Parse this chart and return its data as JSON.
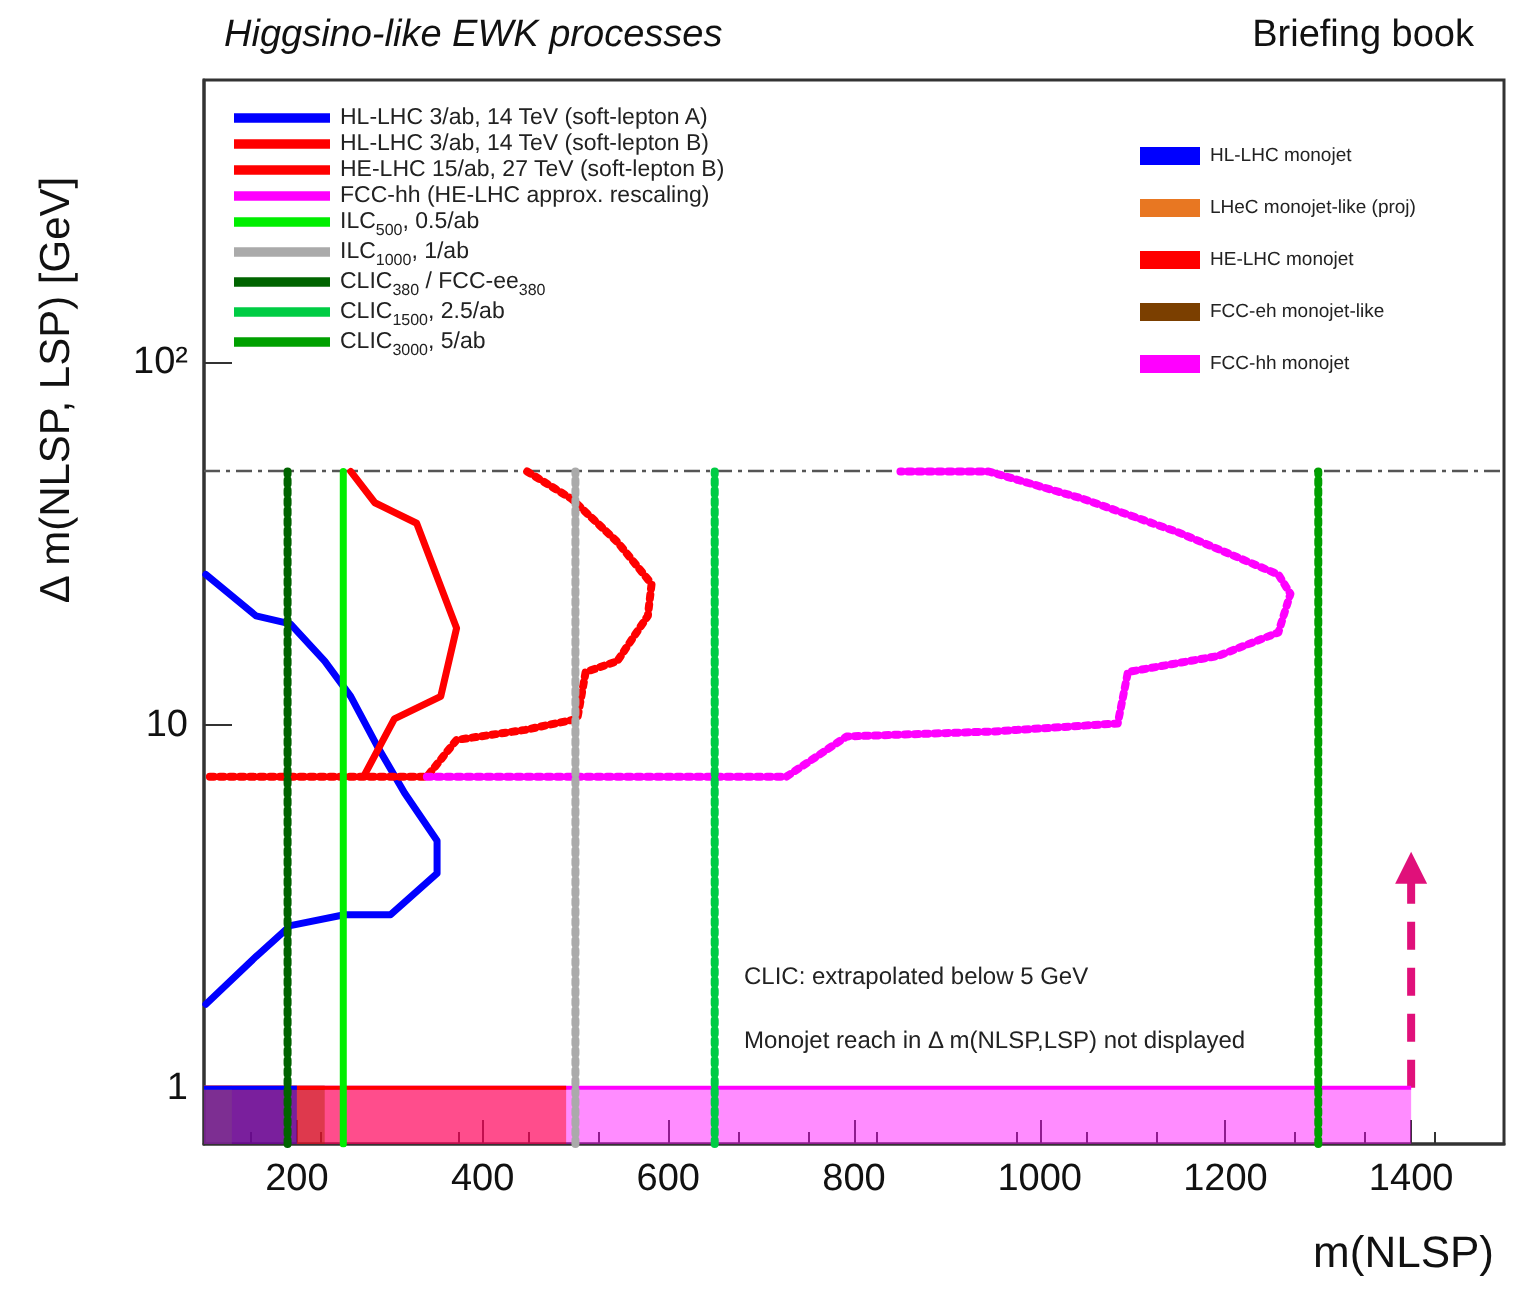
{
  "chart_data": {
    "type": "line",
    "title": "Higgsino-like EWK processes",
    "subtitle": "Briefing book",
    "xlabel": "m(NLSP)",
    "ylabel": "Δ m(NLSP, LSP) [GeV]",
    "xlim": [
      100,
      1500
    ],
    "xticks": [
      200,
      400,
      600,
      800,
      1000,
      1200,
      1400
    ],
    "ylim": [
      0.7,
      600
    ],
    "yticks": [
      1,
      10,
      {
        "value": 100,
        "label": "10²"
      }
    ],
    "log": "y",
    "grid": false,
    "legend": "top",
    "marker": "none",
    "ref_lines": [
      {
        "axis": "y",
        "value": 50,
        "color": "#555555",
        "line_style": "dashed"
      }
    ],
    "annotations": [
      "CLIC: extrapolated below 5 GeV",
      "Monojet reach in Δ m(NLSP,LSP) not displayed"
    ],
    "series": [
      {
        "name": "HL-LHC 3/ab, 14 TeV (soft-lepton A)",
        "color": "#0000ff",
        "line_style": "solid",
        "x": [
          102,
          156,
          193,
          230,
          258,
          286,
          316,
          351,
          351,
          301,
          251,
          193,
          156,
          102
        ],
        "values": [
          26,
          20,
          19,
          15,
          12,
          8.8,
          6.5,
          4.8,
          3.9,
          3.0,
          3.0,
          2.8,
          2.3,
          1.7
        ]
      },
      {
        "name": "HL-LHC 3/ab, 14 TeV (soft-lepton B)",
        "color": "#ff0000",
        "line_style": "solid",
        "x": [
          258,
          284,
          329,
          372,
          355,
          305,
          273
        ],
        "values": [
          50,
          41,
          36,
          18.5,
          12,
          10.4,
          7.3
        ]
      },
      {
        "name": "HE-LHC 15/ab, 27 TeV (soft-lepton B)",
        "color": "#ff0000",
        "line_style": "dotted",
        "x": [
          448,
          496,
          545,
          582,
          578,
          545,
          511,
          502,
          446,
          372,
          340,
          100
        ],
        "values": [
          50,
          42,
          32,
          24.5,
          20,
          15,
          14,
          10.4,
          9.7,
          9.1,
          7.2,
          7.2
        ]
      },
      {
        "name": "FCC-hh (HE-LHC approx. rescaling)",
        "color": "#ff00ff",
        "line_style": "dotted",
        "x": [
          340,
          727,
          792,
          950,
          1084,
          1095,
          1192,
          1257,
          1270,
          1257,
          1149,
          1047,
          945,
          850
        ],
        "values": [
          7.2,
          7.2,
          9.3,
          9.6,
          10.1,
          14,
          15.5,
          18,
          23,
          26,
          34,
          42,
          50,
          50
        ]
      },
      {
        "name": "ILC$_{500}$, 0.5/ab",
        "color": "#00ee00",
        "line_style": "solid",
        "x": [
          250,
          250
        ],
        "values": [
          0.7,
          50
        ]
      },
      {
        "name": "ILC$_{1000}$, 1/ab",
        "color": "#aaaaaa",
        "line_style": "dotted",
        "x": [
          500,
          500
        ],
        "values": [
          0.7,
          50
        ]
      },
      {
        "name": "CLIC$_{380}$ / FCC-ee$_{380}$",
        "color": "#006400",
        "line_style": "dotted",
        "x": [
          190,
          190
        ],
        "values": [
          0.7,
          50
        ]
      },
      {
        "name": "CLIC$_{1500}$, 2.5/ab",
        "color": "#00cc44",
        "line_style": "dotted",
        "x": [
          650,
          650
        ],
        "values": [
          0.7,
          50
        ]
      },
      {
        "name": "CLIC$_{3000}$, 5/ab",
        "color": "#00a000",
        "line_style": "dotted",
        "x": [
          1300,
          1300
        ],
        "values": [
          0.7,
          50
        ]
      },
      {
        "type": "area",
        "name": "HL-LHC monojet",
        "color": "#0000ff",
        "x": [
          100,
          200
        ],
        "values": [
          1,
          1
        ]
      },
      {
        "type": "area",
        "name": "LHeC monojet-like (proj)",
        "color": "#e87722",
        "x": [
          100,
          130
        ],
        "values": [
          1,
          1
        ]
      },
      {
        "type": "area",
        "name": "HE-LHC monojet",
        "color": "#ff0000",
        "x": [
          100,
          490
        ],
        "values": [
          1,
          1
        ]
      },
      {
        "type": "area",
        "name": "FCC-eh monojet-like",
        "color": "#7b3f00",
        "x": [
          100,
          230
        ],
        "values": [
          1,
          1
        ]
      },
      {
        "type": "area",
        "name": "FCC-hh monojet",
        "color": "#ff00ff",
        "x": [
          100,
          1400
        ],
        "values": [
          1,
          1
        ]
      }
    ]
  }
}
